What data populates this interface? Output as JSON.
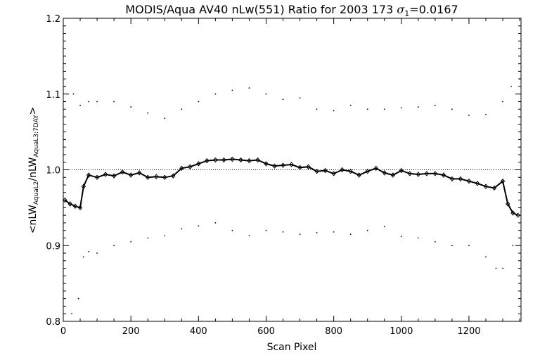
{
  "chart_data": {
    "type": "scatter",
    "title": {
      "prefix": "MODIS/Aqua AV40 nLw(551) Ratio for 2003 173 ",
      "sigma_symbol": "σ",
      "sigma_sub": "1",
      "suffix": "=0.0167"
    },
    "xlabel": "Scan Pixel",
    "ylabel": {
      "open": "<nLW",
      "sub1": "AquaL2",
      "mid": "/nLW",
      "sub2": "AquaL3:7DAY",
      "close": ">"
    },
    "xlim": [
      0,
      1354
    ],
    "ylim": [
      0.8,
      1.2
    ],
    "x_ticks": [
      0,
      200,
      400,
      600,
      800,
      1000,
      1200
    ],
    "x_tick_labels": [
      "0",
      "200",
      "400",
      "600",
      "800",
      "1000",
      "1200"
    ],
    "y_ticks": [
      0.8,
      0.9,
      1.0,
      1.1,
      1.2
    ],
    "y_tick_labels": [
      "0.8",
      "0.9",
      "1.0",
      "1.1",
      "1.2"
    ],
    "reference_line": 1.0,
    "series": [
      {
        "role": "mean_ratio",
        "marker": "diamond",
        "x": [
          5,
          20,
          35,
          50,
          60,
          75,
          100,
          125,
          150,
          175,
          200,
          225,
          250,
          275,
          300,
          325,
          350,
          375,
          400,
          425,
          450,
          475,
          500,
          525,
          550,
          575,
          600,
          625,
          650,
          675,
          700,
          725,
          750,
          775,
          800,
          825,
          850,
          875,
          900,
          925,
          950,
          975,
          1000,
          1025,
          1050,
          1075,
          1100,
          1125,
          1150,
          1175,
          1200,
          1225,
          1250,
          1275,
          1300,
          1315,
          1330,
          1345
        ],
        "y": [
          0.96,
          0.955,
          0.952,
          0.95,
          0.978,
          0.993,
          0.99,
          0.994,
          0.992,
          0.997,
          0.993,
          0.996,
          0.99,
          0.991,
          0.99,
          0.992,
          1.002,
          1.004,
          1.008,
          1.012,
          1.013,
          1.013,
          1.014,
          1.013,
          1.012,
          1.013,
          1.008,
          1.005,
          1.006,
          1.007,
          1.003,
          1.004,
          0.998,
          0.999,
          0.995,
          1.0,
          0.998,
          0.993,
          0.998,
          1.002,
          0.996,
          0.993,
          0.999,
          0.995,
          0.994,
          0.995,
          0.995,
          0.993,
          0.988,
          0.988,
          0.985,
          0.982,
          0.978,
          0.976,
          0.985,
          0.955,
          0.943,
          0.94
        ]
      },
      {
        "role": "upper_bound",
        "marker": "dot",
        "x": [
          5,
          30,
          50,
          75,
          100,
          150,
          200,
          250,
          300,
          350,
          400,
          450,
          500,
          550,
          600,
          650,
          700,
          750,
          800,
          850,
          900,
          950,
          1000,
          1050,
          1100,
          1150,
          1200,
          1250,
          1300,
          1325,
          1350
        ],
        "y": [
          1.11,
          1.1,
          1.085,
          1.09,
          1.09,
          1.09,
          1.083,
          1.075,
          1.068,
          1.08,
          1.09,
          1.1,
          1.105,
          1.108,
          1.1,
          1.093,
          1.095,
          1.08,
          1.078,
          1.085,
          1.08,
          1.08,
          1.082,
          1.083,
          1.085,
          1.08,
          1.072,
          1.073,
          1.09,
          1.11,
          1.12
        ]
      },
      {
        "role": "lower_bound",
        "marker": "dot",
        "x": [
          25,
          45,
          60,
          75,
          100,
          150,
          200,
          250,
          300,
          350,
          400,
          450,
          500,
          550,
          600,
          650,
          700,
          750,
          800,
          850,
          900,
          950,
          1000,
          1050,
          1100,
          1150,
          1200,
          1250,
          1280,
          1300,
          1330,
          1350
        ],
        "y": [
          0.81,
          0.83,
          0.885,
          0.892,
          0.89,
          0.9,
          0.905,
          0.91,
          0.913,
          0.922,
          0.926,
          0.93,
          0.92,
          0.913,
          0.92,
          0.918,
          0.915,
          0.917,
          0.918,
          0.915,
          0.92,
          0.925,
          0.912,
          0.91,
          0.905,
          0.9,
          0.9,
          0.885,
          0.87,
          0.87,
          0.9,
          0.91
        ]
      }
    ]
  }
}
